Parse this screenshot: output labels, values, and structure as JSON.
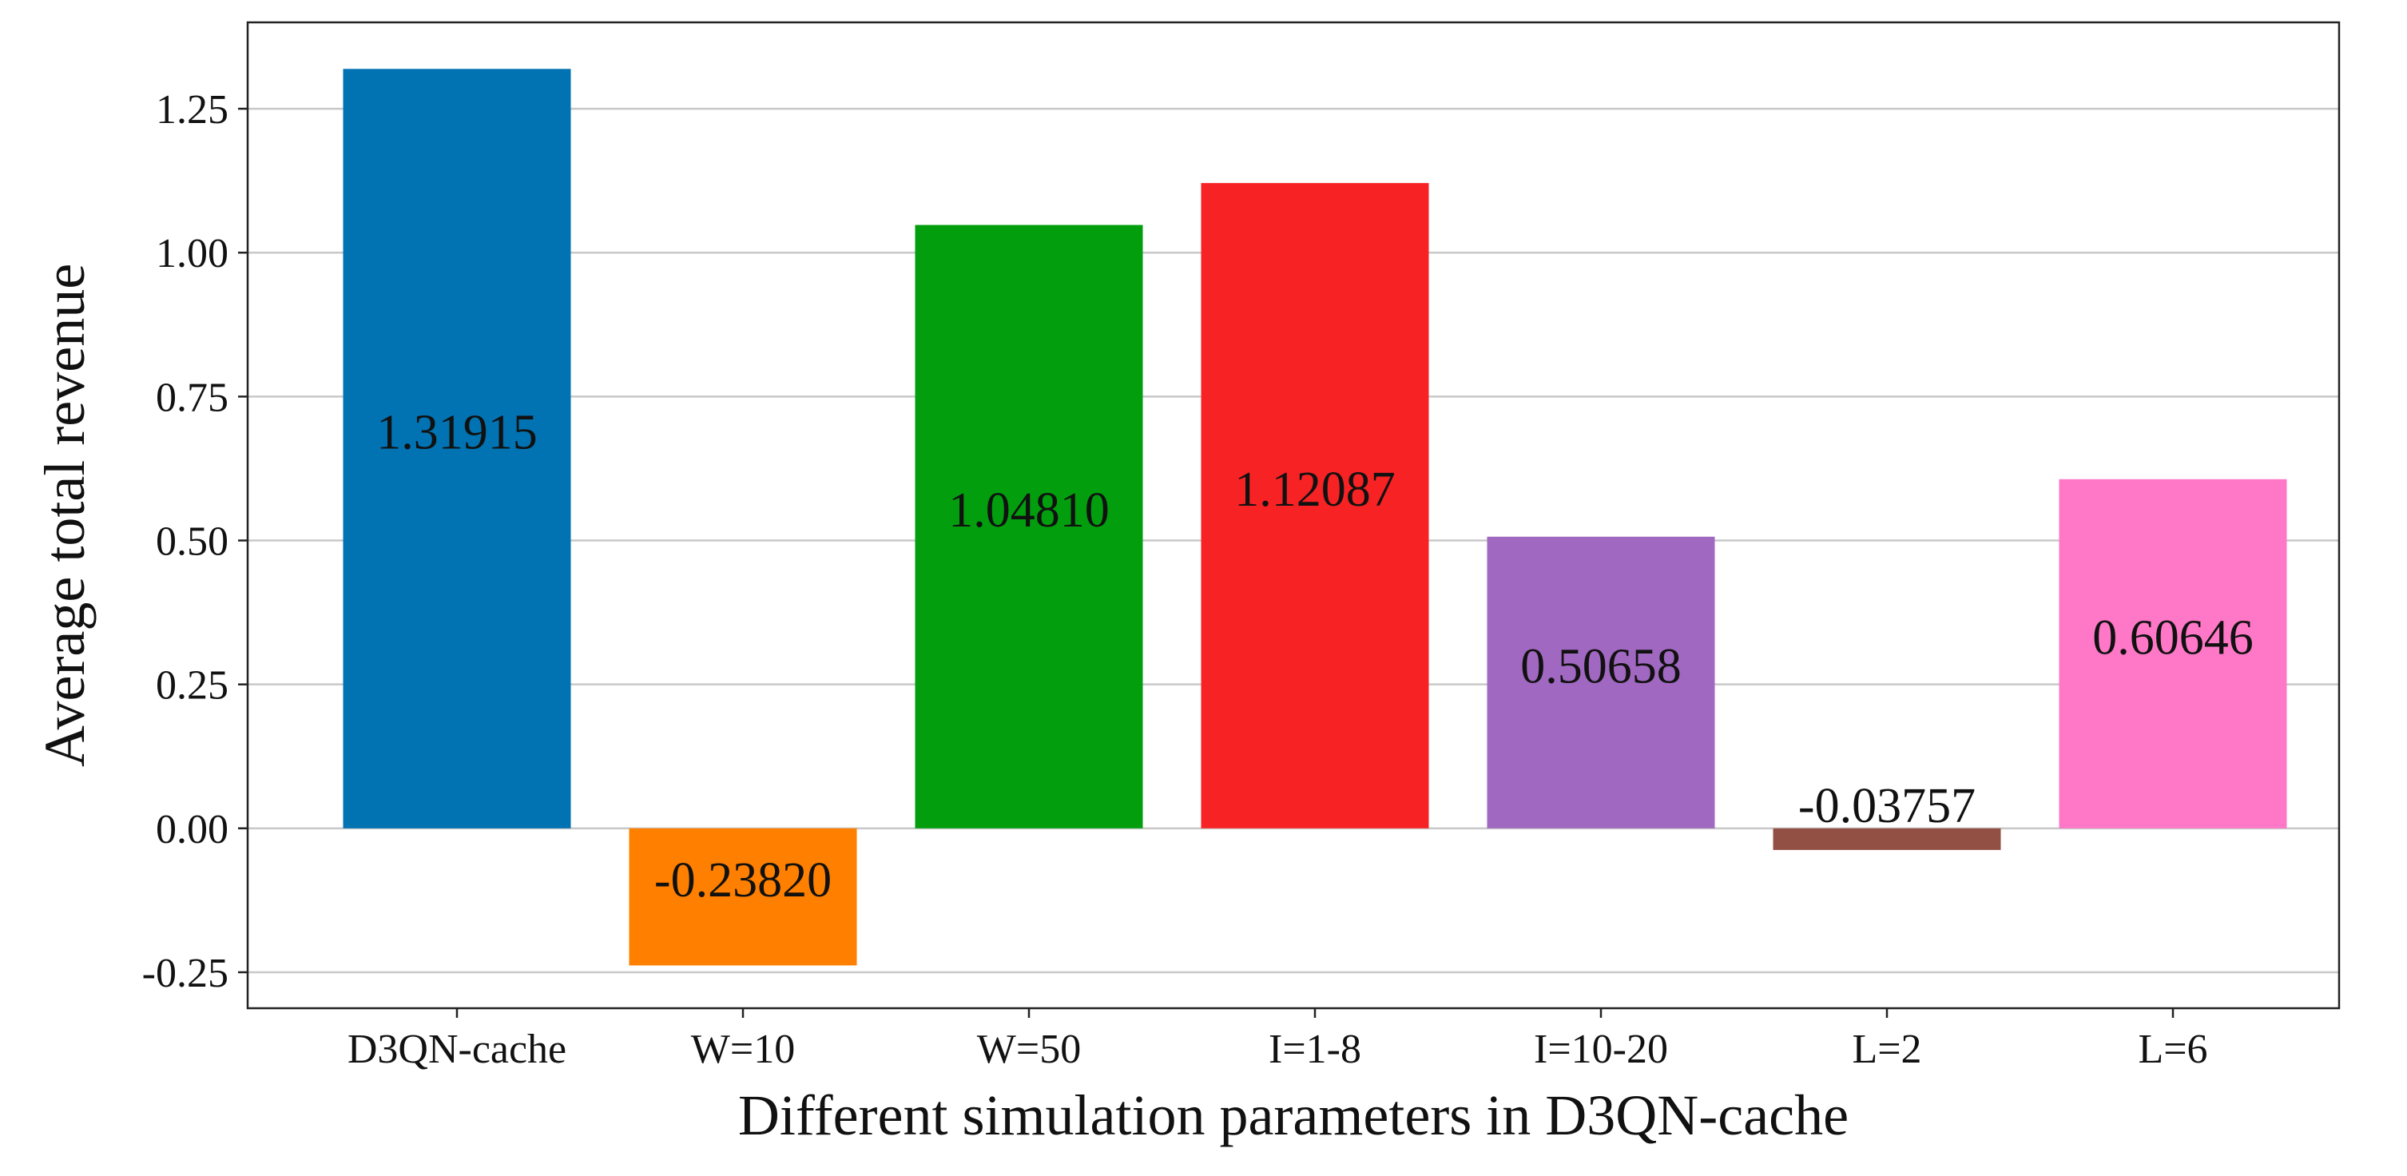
{
  "chart_data": {
    "type": "bar",
    "title": "",
    "xlabel": "Different simulation parameters in D3QN-cache",
    "ylabel": "Average total revenue",
    "categories": [
      "D3QN-cache",
      "W=10",
      "W=50",
      "I=1-8",
      "I=10-20",
      "L=2",
      "L=6"
    ],
    "values": [
      1.31915,
      -0.2382,
      1.0481,
      1.12087,
      0.50658,
      -0.03757,
      0.60646
    ],
    "value_labels": [
      "1.31915",
      "-0.23820",
      "1.04810",
      "1.12087",
      "0.50658",
      "-0.03757",
      "0.60646"
    ],
    "colors": [
      "#0173b2",
      "#ff7f00",
      "#029e0e",
      "#f72224",
      "#a068c0",
      "#925044",
      "#ff78c8"
    ],
    "ylim": [
      -0.3125,
      1.4
    ],
    "yticks": [
      -0.25,
      0.0,
      0.25,
      0.5,
      0.75,
      1.0,
      1.25
    ],
    "ytick_labels": [
      "-0.25",
      "0.00",
      "0.25",
      "0.50",
      "0.75",
      "1.00",
      "1.25"
    ],
    "grid": "horizontal",
    "legend": "none"
  }
}
